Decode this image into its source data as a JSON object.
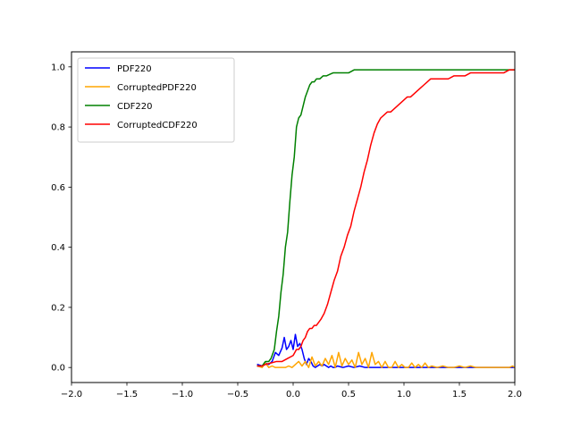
{
  "chart_data": {
    "type": "line",
    "title": "",
    "xlabel": "",
    "ylabel": "",
    "xlim": [
      -2.0,
      2.0
    ],
    "ylim": [
      -0.05,
      1.05
    ],
    "xticks": [
      -2.0,
      -1.5,
      -1.0,
      -0.5,
      0.0,
      0.5,
      1.0,
      1.5,
      2.0
    ],
    "xtick_labels": [
      "−2.0",
      "−1.5",
      "−1.0",
      "−0.5",
      "0.0",
      "0.5",
      "1.0",
      "1.5",
      "2.0"
    ],
    "yticks": [
      0.0,
      0.2,
      0.4,
      0.6,
      0.8,
      1.0
    ],
    "ytick_labels": [
      "0.0",
      "0.2",
      "0.4",
      "0.6",
      "0.8",
      "1.0"
    ],
    "grid": false,
    "legend": {
      "placement": "top-left"
    },
    "series": [
      {
        "name": "PDF220",
        "color": "#0000ff",
        "x": [
          -0.32,
          -0.28,
          -0.25,
          -0.22,
          -0.19,
          -0.16,
          -0.13,
          -0.1,
          -0.08,
          -0.06,
          -0.04,
          -0.02,
          0.0,
          0.02,
          0.04,
          0.06,
          0.08,
          0.1,
          0.12,
          0.14,
          0.16,
          0.18,
          0.2,
          0.22,
          0.24,
          0.26,
          0.28,
          0.3,
          0.32,
          0.34,
          0.36,
          0.38,
          0.4,
          0.45,
          0.5,
          0.55,
          0.6,
          0.65,
          0.7,
          0.8,
          0.9,
          1.0,
          1.1,
          1.2,
          1.3,
          1.4,
          1.5,
          1.6,
          1.7,
          1.8,
          1.9,
          2.0
        ],
        "y": [
          0.01,
          0.005,
          0.015,
          0.01,
          0.02,
          0.05,
          0.04,
          0.065,
          0.1,
          0.06,
          0.07,
          0.09,
          0.06,
          0.11,
          0.07,
          0.08,
          0.06,
          0.03,
          0.01,
          0.03,
          0.02,
          0.005,
          0.0,
          0.005,
          0.01,
          0.005,
          0.01,
          0.005,
          0.0,
          0.005,
          0.0,
          0.0,
          0.005,
          0.0,
          0.005,
          0.0,
          0.005,
          0.0,
          0.0,
          0.0,
          0.0,
          0.0,
          0.0,
          0.0,
          0.0,
          0.0,
          0.0,
          0.0,
          0.0,
          0.0,
          0.0,
          0.0
        ]
      },
      {
        "name": "CorruptedPDF220",
        "color": "#ffa500",
        "x": [
          -0.32,
          -0.28,
          -0.25,
          -0.22,
          -0.19,
          -0.16,
          -0.13,
          -0.1,
          -0.07,
          -0.04,
          -0.01,
          0.02,
          0.05,
          0.08,
          0.11,
          0.14,
          0.17,
          0.2,
          0.23,
          0.26,
          0.29,
          0.32,
          0.35,
          0.38,
          0.41,
          0.44,
          0.47,
          0.5,
          0.53,
          0.56,
          0.59,
          0.62,
          0.65,
          0.68,
          0.71,
          0.74,
          0.77,
          0.8,
          0.83,
          0.86,
          0.89,
          0.92,
          0.95,
          0.98,
          1.01,
          1.04,
          1.07,
          1.1,
          1.13,
          1.16,
          1.19,
          1.22,
          1.25,
          1.3,
          1.35,
          1.4,
          1.45,
          1.5,
          1.55,
          1.6,
          1.65,
          1.7,
          1.8,
          1.9,
          1.95,
          1.98,
          2.0
        ],
        "y": [
          0.005,
          0.0,
          0.015,
          0.0,
          0.005,
          0.0,
          0.0,
          0.0,
          0.0,
          0.005,
          0.0,
          0.01,
          0.02,
          0.005,
          0.02,
          0.0,
          0.035,
          0.005,
          0.02,
          0.005,
          0.03,
          0.01,
          0.04,
          0.0,
          0.05,
          0.005,
          0.03,
          0.01,
          0.025,
          0.0,
          0.05,
          0.01,
          0.03,
          0.0,
          0.05,
          0.01,
          0.02,
          0.0,
          0.02,
          0.0,
          0.0,
          0.02,
          0.0,
          0.01,
          0.0,
          0.0,
          0.015,
          0.0,
          0.01,
          0.0,
          0.015,
          0.0,
          0.005,
          0.0,
          0.005,
          0.0,
          0.0,
          0.005,
          0.0,
          0.005,
          0.0,
          0.0,
          0.0,
          0.0,
          0.0,
          0.005,
          0.0
        ]
      },
      {
        "name": "CDF220",
        "color": "#008000",
        "x": [
          -0.32,
          -0.28,
          -0.25,
          -0.22,
          -0.2,
          -0.17,
          -0.15,
          -0.13,
          -0.11,
          -0.09,
          -0.07,
          -0.05,
          -0.03,
          -0.01,
          0.01,
          0.03,
          0.05,
          0.07,
          0.09,
          0.11,
          0.13,
          0.15,
          0.17,
          0.19,
          0.21,
          0.24,
          0.27,
          0.3,
          0.33,
          0.36,
          0.4,
          0.45,
          0.5,
          0.55,
          0.6,
          0.65,
          0.7,
          0.8,
          1.0,
          1.2,
          1.4,
          1.6,
          1.8,
          2.0
        ],
        "y": [
          0.005,
          0.005,
          0.02,
          0.02,
          0.03,
          0.06,
          0.12,
          0.17,
          0.25,
          0.31,
          0.4,
          0.45,
          0.55,
          0.64,
          0.7,
          0.8,
          0.83,
          0.84,
          0.87,
          0.9,
          0.92,
          0.94,
          0.95,
          0.95,
          0.96,
          0.96,
          0.97,
          0.97,
          0.975,
          0.98,
          0.98,
          0.98,
          0.98,
          0.99,
          0.99,
          0.99,
          0.99,
          0.99,
          0.99,
          0.99,
          0.99,
          0.99,
          0.99,
          0.99
        ]
      },
      {
        "name": "CorruptedCDF220",
        "color": "#ff0000",
        "x": [
          -0.32,
          -0.28,
          -0.25,
          -0.2,
          -0.15,
          -0.1,
          -0.05,
          0.0,
          0.03,
          0.05,
          0.07,
          0.09,
          0.11,
          0.13,
          0.15,
          0.17,
          0.19,
          0.21,
          0.23,
          0.25,
          0.28,
          0.31,
          0.34,
          0.37,
          0.4,
          0.43,
          0.46,
          0.49,
          0.52,
          0.55,
          0.58,
          0.61,
          0.64,
          0.67,
          0.7,
          0.73,
          0.76,
          0.79,
          0.82,
          0.85,
          0.88,
          0.91,
          0.94,
          0.97,
          1.0,
          1.03,
          1.06,
          1.09,
          1.12,
          1.15,
          1.18,
          1.21,
          1.24,
          1.27,
          1.3,
          1.35,
          1.4,
          1.45,
          1.5,
          1.55,
          1.6,
          1.65,
          1.7,
          1.8,
          1.9,
          1.95,
          1.98,
          2.0
        ],
        "y": [
          0.005,
          0.005,
          0.01,
          0.015,
          0.02,
          0.02,
          0.03,
          0.04,
          0.06,
          0.06,
          0.07,
          0.09,
          0.1,
          0.12,
          0.13,
          0.13,
          0.14,
          0.14,
          0.15,
          0.16,
          0.18,
          0.21,
          0.25,
          0.29,
          0.32,
          0.37,
          0.4,
          0.44,
          0.47,
          0.52,
          0.56,
          0.6,
          0.65,
          0.69,
          0.74,
          0.78,
          0.81,
          0.83,
          0.84,
          0.85,
          0.85,
          0.86,
          0.87,
          0.88,
          0.89,
          0.9,
          0.9,
          0.91,
          0.92,
          0.93,
          0.94,
          0.95,
          0.96,
          0.96,
          0.96,
          0.96,
          0.96,
          0.97,
          0.97,
          0.97,
          0.98,
          0.98,
          0.98,
          0.98,
          0.98,
          0.99,
          0.99,
          0.99
        ]
      }
    ]
  }
}
